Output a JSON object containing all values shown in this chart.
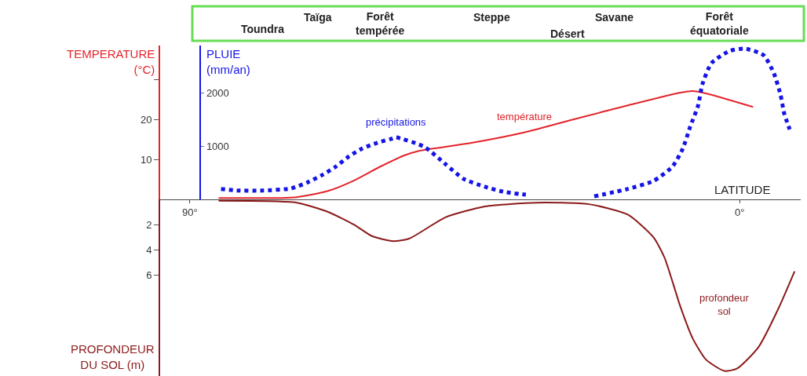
{
  "chart_data": {
    "type": "line",
    "xlabel": "LATITUDE",
    "ylabel": "TEMPERATURE\n(°C)",
    "y2label": "PLUIE\n(mm/an)",
    "y3label": "PROFONDEUR\nDU SOL (m)",
    "xlim": [
      95,
      -10
    ],
    "xticks": [
      {
        "value": 90,
        "label": "90°"
      },
      {
        "value": 0,
        "label": "0°"
      }
    ],
    "ylim": [
      0,
      38.6
    ],
    "yticks": [
      10,
      20,
      {
        "value": 30,
        "label": null
      }
    ],
    "y2lim": [
      0,
      2900
    ],
    "y2ticks": [
      1000,
      2000
    ],
    "y3lim": [
      14,
      0
    ],
    "y3ticks": [
      2,
      4,
      6
    ],
    "series": [
      {
        "name": "température",
        "color": "#e3242b",
        "line_style": "solid",
        "x": [
          85.3,
          72.5,
          67.3,
          63.1,
          58.9,
          55.0,
          52.5,
          43.9,
          35.3,
          26.9,
          18.3,
          9.7,
          7.7,
          5.5,
          -2.2
        ],
        "values": [
          0.4,
          0.6,
          2.2,
          4.8,
          8.2,
          11,
          12.2,
          14.2,
          16.8,
          20.2,
          23.6,
          26.8,
          27.2,
          26.6,
          23.2
        ]
      },
      {
        "name": "précipitations",
        "color": "#1414e6",
        "axis": "y2",
        "line_style": "dotted",
        "x": [
          84.9,
          82.3,
          78.1,
          73.4,
          70.8,
          68.2,
          66.1,
          64.0,
          61.8,
          59.3,
          57.1,
          56.3,
          51.6,
          48.1,
          45.2,
          41.7,
          38.4,
          35.0,
          30,
          23.8,
          18.3,
          14.1,
          11.0,
          9.3,
          8.1,
          6.8,
          6.1,
          4.6,
          1.6,
          -0.9,
          -3.9,
          -5.6,
          -6.7,
          -7.3,
          -8.2
        ],
        "values": [
          200,
          170,
          170,
          210,
          320,
          470,
          620,
          810,
          960,
          1070,
          1140,
          1170,
          990,
          660,
          390,
          240,
          140,
          90,
          null,
          60,
          200,
          350,
          620,
          960,
          1370,
          1770,
          2170,
          2570,
          2800,
          2840,
          2720,
          2380,
          1970,
          1620,
          1320
        ]
      },
      {
        "name": "profondeur\nsol",
        "color": "#8b1a1a",
        "axis": "y3",
        "line_style": "solid",
        "x": [
          85.3,
          72.5,
          67.3,
          63.1,
          60.2,
          56.7,
          54.1,
          48.1,
          41.7,
          33.3,
          24.7,
          18.3,
          14.1,
          12.3,
          9.7,
          7.7,
          5.5,
          2.5,
          0.4,
          -3.1,
          -6.4,
          -9.0
        ],
        "values": [
          0.1,
          0.25,
          1.0,
          2.0,
          2.9,
          3.3,
          3.1,
          1.4,
          0.55,
          0.25,
          0.37,
          1.2,
          3.0,
          4.6,
          8.5,
          11.0,
          12.7,
          13.6,
          13.4,
          11.7,
          8.6,
          5.7
        ]
      }
    ],
    "annotations": [
      "Toundra",
      "Taïga",
      "Forêt\ntempérée",
      "Steppe",
      "Désert",
      "Savane",
      "Forêt\néquatoriale"
    ],
    "grid": false,
    "legend": false
  }
}
